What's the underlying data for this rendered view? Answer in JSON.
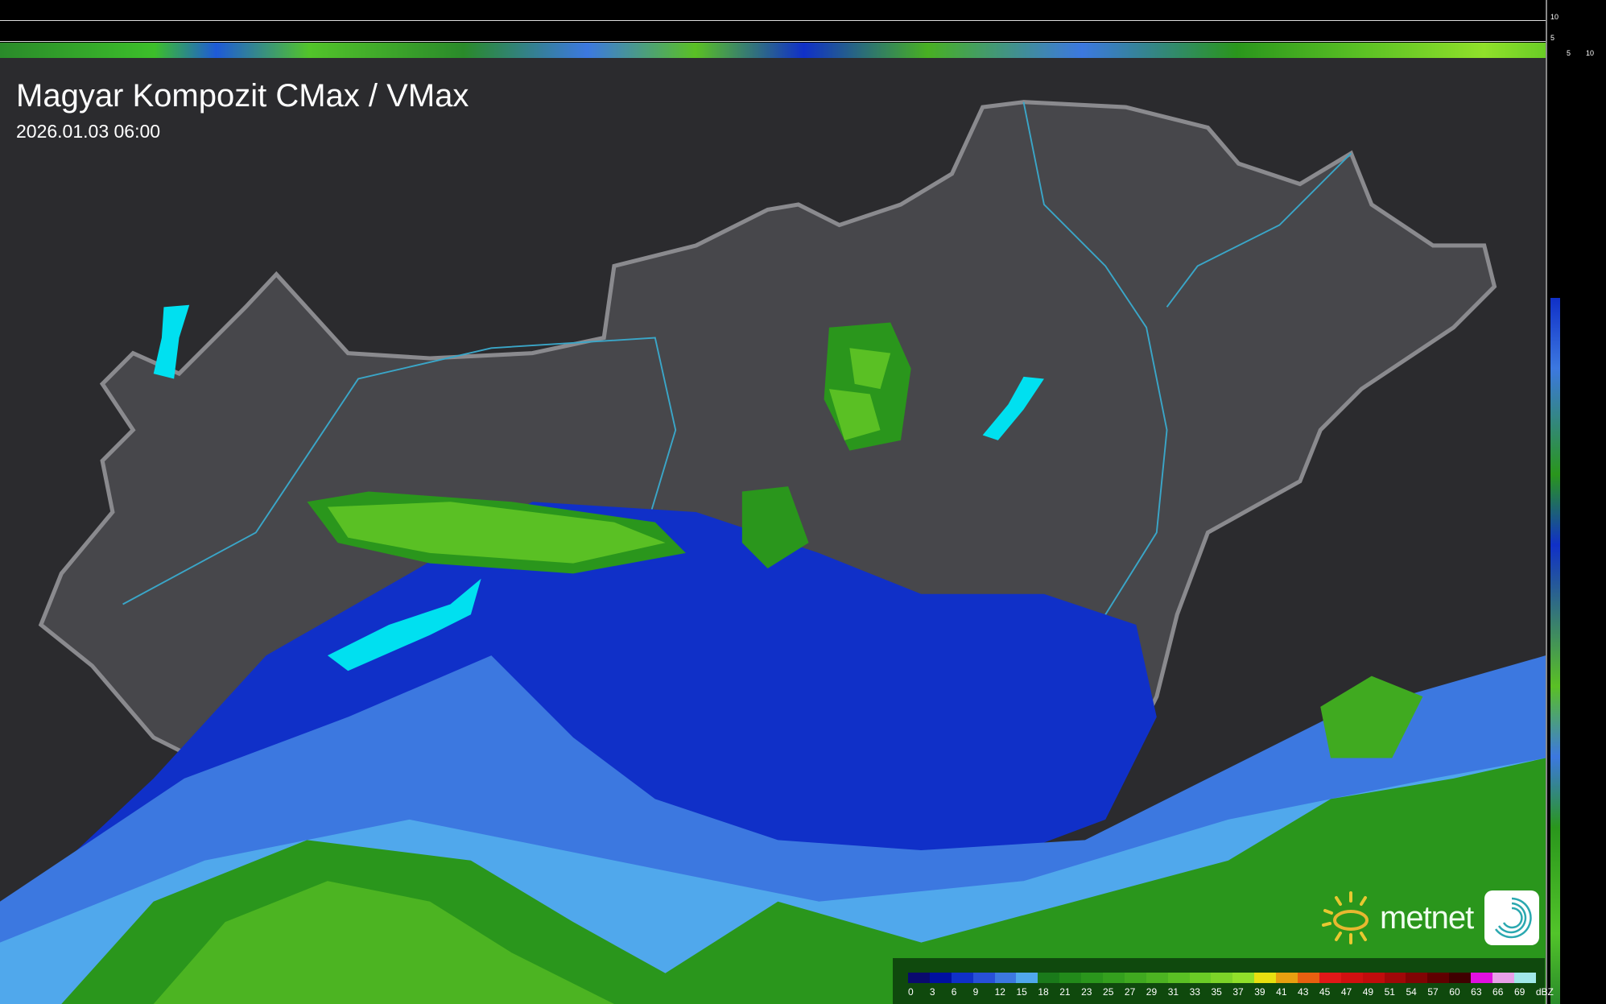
{
  "header": {
    "title": "Magyar Kompozit CMax / VMax",
    "datetime": "2026.01.03 06:00"
  },
  "profile_axes": {
    "vertical_ticks": [
      "10",
      "5"
    ],
    "horizontal_ticks": [
      "5",
      "10"
    ]
  },
  "legend": {
    "unit": "dBZ",
    "labels": [
      "0",
      "3",
      "6",
      "9",
      "12",
      "15",
      "18",
      "21",
      "23",
      "25",
      "27",
      "29",
      "31",
      "33",
      "35",
      "37",
      "39",
      "41",
      "43",
      "45",
      "47",
      "49",
      "51",
      "54",
      "57",
      "60",
      "63",
      "66",
      "69"
    ],
    "colors": [
      "#0a0a6e",
      "#0010a0",
      "#1030c8",
      "#2850d8",
      "#3c78e0",
      "#50a8ec",
      "#1a7a1a",
      "#228a1a",
      "#2a961c",
      "#34a01e",
      "#40aa20",
      "#4cb422",
      "#5ac024",
      "#6acc26",
      "#7cd428",
      "#90e02a",
      "#e8e010",
      "#e8a010",
      "#e86010",
      "#e01818",
      "#d01010",
      "#c00c0c",
      "#a00808",
      "#800404",
      "#600000",
      "#400000",
      "#e010e0",
      "#e8a0e8",
      "#a0e8e8"
    ]
  },
  "logo": {
    "text": "metnet"
  },
  "colors": {
    "background": "#2b2b2e",
    "country": "#47474b",
    "border": "#8a8a8e",
    "rivers": "#3aa6c8"
  }
}
